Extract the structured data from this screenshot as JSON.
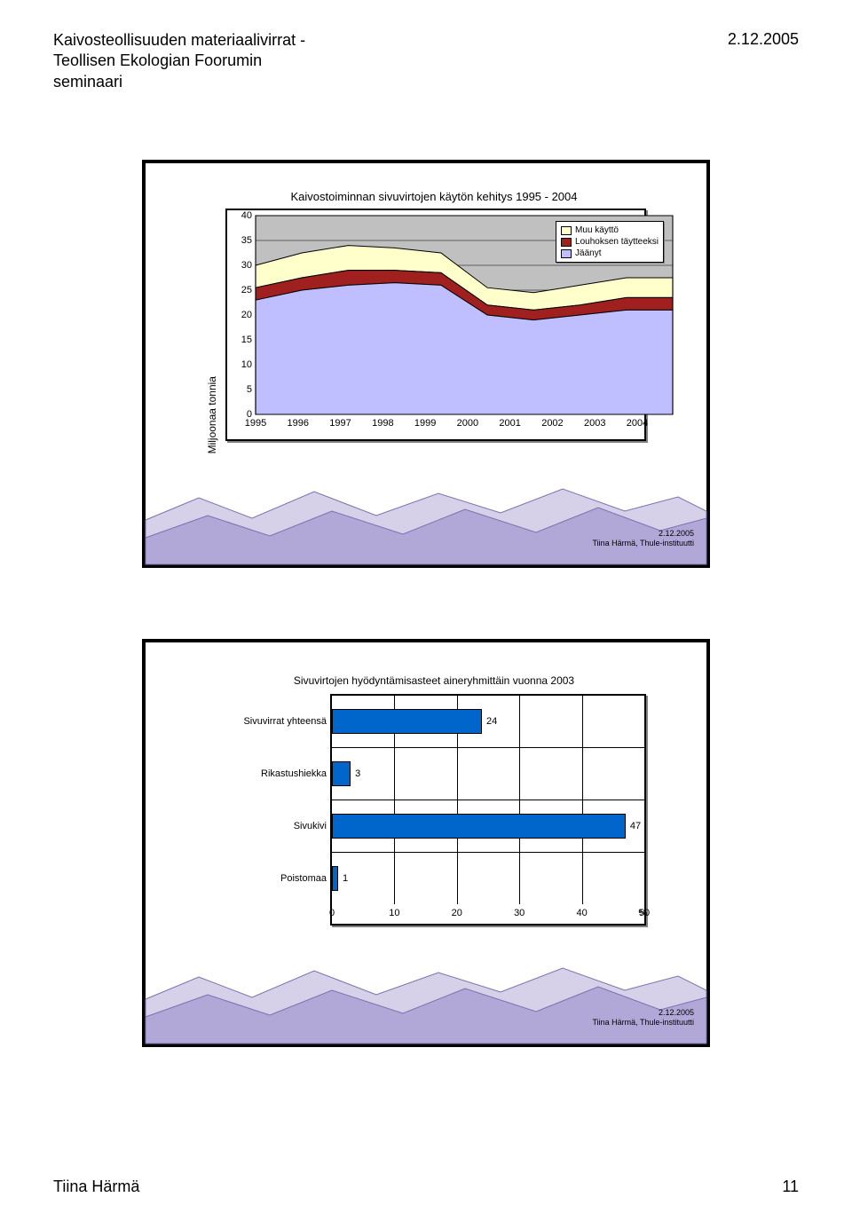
{
  "header": {
    "title_line1": "Kaivosteollisuuden materiaalivirrat -",
    "title_line2": "Teollisen Ekologian Foorumin",
    "title_line3": "seminaari",
    "date": "2.12.2005"
  },
  "footer": {
    "author": "Tiina Härmä",
    "page": "11"
  },
  "slide_credit": {
    "date": "2.12.2005",
    "attribution": "Tiina Härmä, Thule-instituutti"
  },
  "mountains": {
    "back_color": "#d6d0e8",
    "front_color": "#b2a8d8",
    "stroke_color": "#7a70b0"
  },
  "area_chart": {
    "type": "area",
    "title": "Kaivostoiminnan sivuvirtojen käytön kehitys 1995 - 2004",
    "ylabel": "Miljoonaa tonnia",
    "title_fontsize": 13,
    "label_fontsize": 12,
    "tick_fontsize": 11,
    "background_color": "#c0c0c0",
    "border_color": "#000000",
    "x_categories": [
      "1995",
      "1996",
      "1997",
      "1998",
      "1999",
      "2000",
      "2001",
      "2002",
      "2003",
      "2004"
    ],
    "ylim": [
      0,
      40
    ],
    "ytick_step": 5,
    "yticks": [
      "0",
      "5",
      "10",
      "15",
      "20",
      "25",
      "30",
      "35",
      "40"
    ],
    "series": [
      {
        "name": "Jäänyt",
        "label": "Jäänyt",
        "color": "#bfbfff",
        "stroke": "#000000",
        "values": [
          23,
          25,
          26,
          26.5,
          26,
          20,
          19,
          20,
          21,
          21
        ]
      },
      {
        "name": "Louhoksen täytteeksi",
        "label": "Louhoksen täytteeksi",
        "color": "#a02020",
        "stroke": "#000000",
        "values": [
          2.5,
          2.5,
          3,
          2.5,
          2.5,
          2,
          2,
          2,
          2.5,
          2.5
        ]
      },
      {
        "name": "Muu käyttö",
        "label": "Muu käyttö",
        "color": "#ffffcc",
        "stroke": "#000000",
        "values": [
          4.5,
          5,
          5,
          4.5,
          4,
          3.5,
          3.5,
          4,
          4,
          4
        ]
      }
    ],
    "legend": [
      {
        "label": "Muu käyttö",
        "color": "#ffffcc"
      },
      {
        "label": "Louhoksen täytteeksi",
        "color": "#a02020"
      },
      {
        "label": "Jäänyt",
        "color": "#bfbfff"
      }
    ]
  },
  "bar_chart": {
    "type": "bar",
    "title": "Sivuvirtojen hyödyntämisasteet aineryhmittäin vuonna 2003",
    "title_fontsize": 12,
    "tick_fontsize": 11,
    "bar_color": "#0066cc",
    "border_color": "#000000",
    "background_color": "#ffffff",
    "xlim": [
      0,
      50
    ],
    "xtick_step": 10,
    "xticks": [
      "0",
      "10",
      "20",
      "30",
      "40",
      "50"
    ],
    "x_unit": "%",
    "categories": [
      {
        "label": "Sivuvirrat yhteensä",
        "value": 24
      },
      {
        "label": "Rikastushiekka",
        "value": 3
      },
      {
        "label": "Sivukivi",
        "value": 47
      },
      {
        "label": "Poistomaa",
        "value": 1
      }
    ]
  }
}
